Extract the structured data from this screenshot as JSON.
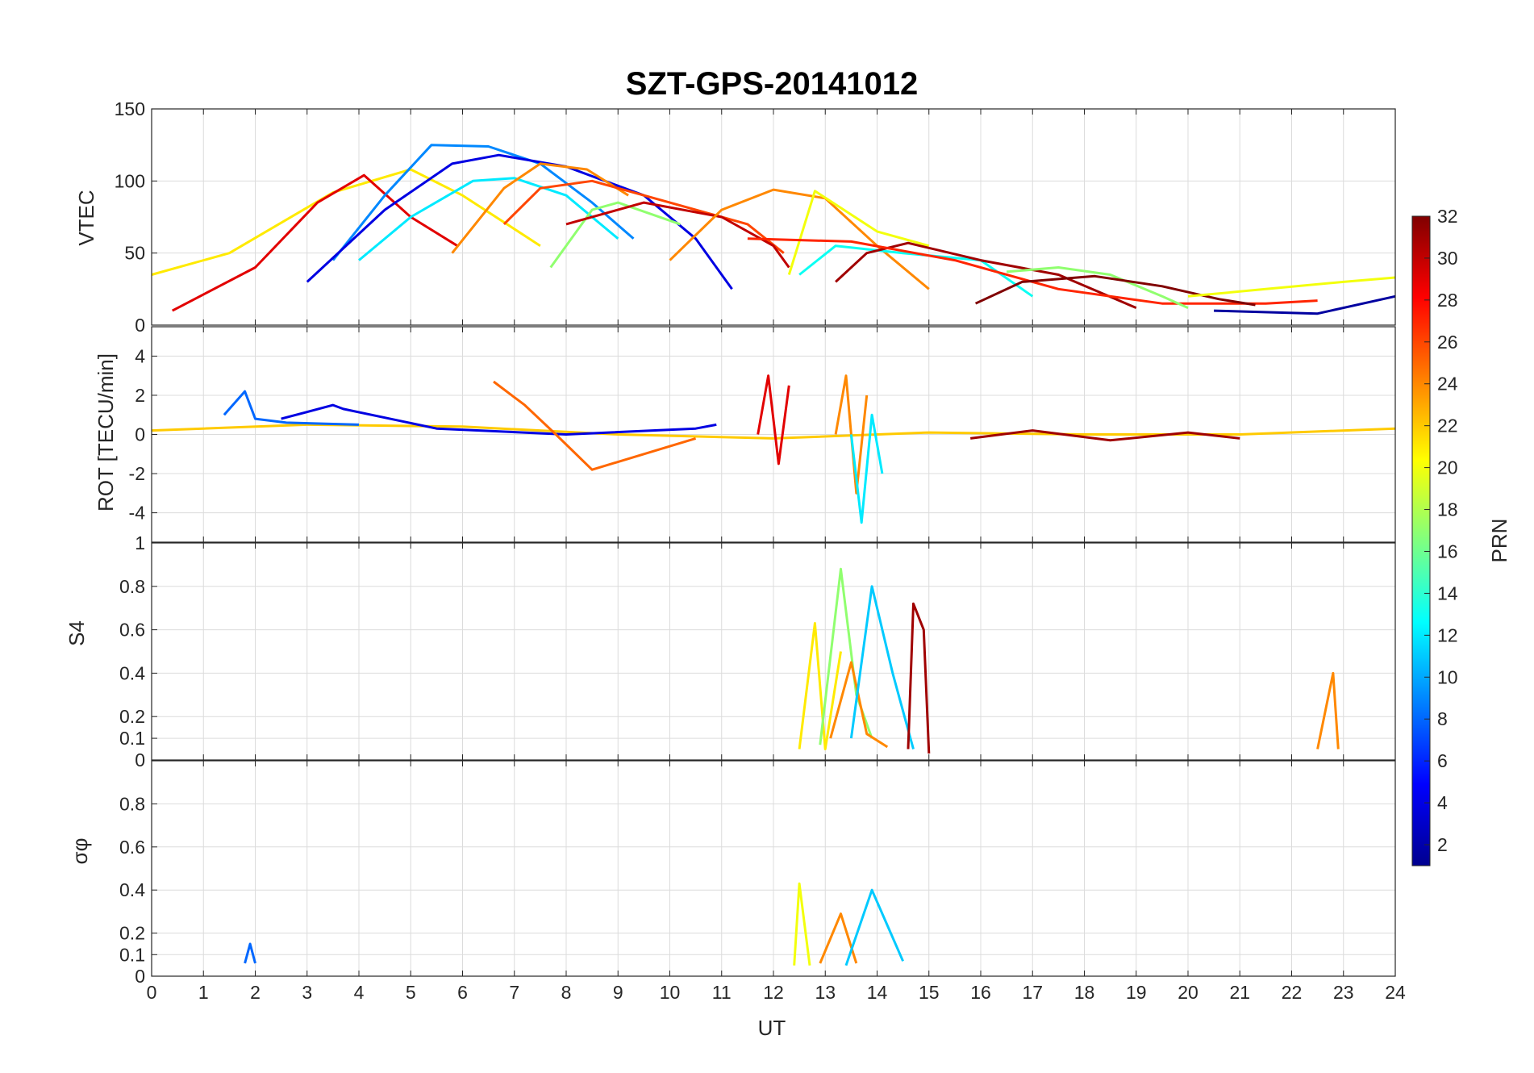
{
  "chart_data": {
    "type": "line",
    "title": "SZT-GPS-20141012",
    "xlabel": "UT",
    "xlim": [
      0,
      24
    ],
    "x_ticks": [
      "0",
      "1",
      "2",
      "3",
      "4",
      "5",
      "6",
      "7",
      "8",
      "9",
      "10",
      "11",
      "12",
      "13",
      "14",
      "15",
      "16",
      "17",
      "18",
      "19",
      "20",
      "21",
      "22",
      "23",
      "24"
    ],
    "grid": true,
    "colorbar": {
      "label": "PRN",
      "range": [
        1,
        32
      ],
      "ticks": [
        "2",
        "4",
        "6",
        "8",
        "10",
        "12",
        "14",
        "16",
        "18",
        "20",
        "22",
        "24",
        "26",
        "28",
        "30",
        "32"
      ],
      "colormap": "jet"
    },
    "panels": [
      {
        "ylabel": "VTEC",
        "ylim": [
          0,
          150
        ],
        "y_ticks": [
          "0",
          "50",
          "100",
          "150"
        ]
      },
      {
        "ylabel": "ROT [TECU/min]",
        "ylim": [
          -5.5,
          5.5
        ],
        "y_ticks": [
          "-4",
          "-2",
          "0",
          "2",
          "4"
        ]
      },
      {
        "ylabel": "S4",
        "ylim": [
          0,
          1
        ],
        "y_ticks": [
          "0",
          "0.1",
          "0.2",
          "0.4",
          "0.6",
          "0.8",
          "1"
        ]
      },
      {
        "ylabel": "σφ",
        "ylim": [
          0,
          1
        ],
        "y_ticks": [
          "0",
          "0.1",
          "0.2",
          "0.4",
          "0.6",
          "0.8"
        ]
      }
    ],
    "series": [
      {
        "prn": 21,
        "panel": 0,
        "x": [
          0,
          1.5,
          3.5,
          5.0,
          6.0,
          7.5
        ],
        "y": [
          35,
          50,
          92,
          108,
          90,
          55
        ]
      },
      {
        "prn": 29,
        "panel": 0,
        "x": [
          0.4,
          2.0,
          3.2,
          4.1,
          5.0,
          5.9
        ],
        "y": [
          10,
          40,
          85,
          104,
          75,
          55
        ]
      },
      {
        "prn": 9,
        "panel": 0,
        "x": [
          3.5,
          4.5,
          5.4,
          6.5,
          7.5,
          8.5,
          9.3
        ],
        "y": [
          45,
          90,
          125,
          124,
          112,
          85,
          60
        ]
      },
      {
        "prn": 4,
        "panel": 0,
        "x": [
          3.0,
          4.5,
          5.8,
          6.7,
          8.0,
          9.5,
          10.5,
          11.2
        ],
        "y": [
          30,
          80,
          112,
          118,
          110,
          90,
          60,
          25
        ]
      },
      {
        "prn": 12,
        "panel": 0,
        "x": [
          4.0,
          5.0,
          6.2,
          7.0,
          8.0,
          9.0
        ],
        "y": [
          45,
          75,
          100,
          102,
          90,
          60
        ]
      },
      {
        "prn": 24,
        "panel": 0,
        "x": [
          5.8,
          6.8,
          7.5,
          8.4,
          9.2
        ],
        "y": [
          50,
          95,
          112,
          108,
          90
        ]
      },
      {
        "prn": 26,
        "panel": 0,
        "x": [
          6.8,
          7.5,
          8.5,
          10.0,
          11.5,
          12.2
        ],
        "y": [
          70,
          95,
          100,
          85,
          70,
          50
        ]
      },
      {
        "prn": 17,
        "panel": 0,
        "x": [
          7.7,
          8.5,
          9.0,
          10.2
        ],
        "y": [
          40,
          80,
          85,
          70
        ]
      },
      {
        "prn": 30,
        "panel": 0,
        "x": [
          8.0,
          9.5,
          11.0,
          12.0,
          12.3
        ],
        "y": [
          70,
          85,
          75,
          55,
          40
        ]
      },
      {
        "prn": 24,
        "panel": 0,
        "x": [
          10.0,
          11.0,
          12.0,
          13.0,
          14.0,
          15.0
        ],
        "y": [
          45,
          80,
          94,
          88,
          55,
          25
        ]
      },
      {
        "prn": 20,
        "panel": 0,
        "x": [
          12.3,
          12.8,
          14.0,
          15.0
        ],
        "y": [
          35,
          93,
          65,
          55
        ]
      },
      {
        "prn": 13,
        "panel": 0,
        "x": [
          12.5,
          13.2,
          14.5,
          16.0,
          17.0
        ],
        "y": [
          35,
          55,
          50,
          45,
          20
        ]
      },
      {
        "prn": 31,
        "panel": 0,
        "x": [
          13.2,
          13.8,
          14.6,
          16.0,
          17.5,
          19.0
        ],
        "y": [
          30,
          50,
          57,
          45,
          35,
          12
        ]
      },
      {
        "prn": 27,
        "panel": 0,
        "x": [
          11.5,
          13.5,
          15.5,
          17.5,
          19.5,
          21.5,
          22.5
        ],
        "y": [
          60,
          58,
          45,
          25,
          15,
          15,
          17
        ]
      },
      {
        "prn": 17,
        "panel": 0,
        "x": [
          16.5,
          17.5,
          18.5,
          19.5,
          20.0
        ],
        "y": [
          37,
          40,
          35,
          20,
          12
        ]
      },
      {
        "prn": 32,
        "panel": 0,
        "x": [
          15.9,
          16.8,
          18.2,
          19.5,
          20.6,
          21.3
        ],
        "y": [
          15,
          30,
          34,
          27,
          18,
          14
        ]
      },
      {
        "prn": 20,
        "panel": 0,
        "x": [
          20.0,
          21.5,
          23.0,
          24.0
        ],
        "y": [
          20,
          25,
          30,
          33
        ]
      },
      {
        "prn": 2,
        "panel": 0,
        "x": [
          20.5,
          22.5,
          24.0
        ],
        "y": [
          10,
          8,
          20
        ]
      },
      {
        "prn": 22,
        "panel": 1,
        "x": [
          0,
          3,
          6,
          9,
          12,
          15,
          18,
          21,
          24
        ],
        "y": [
          0.2,
          0.5,
          0.4,
          0,
          -0.2,
          0.1,
          0,
          0,
          0.3
        ]
      },
      {
        "prn": 8,
        "panel": 1,
        "x": [
          1.4,
          1.8,
          2.0,
          2.6,
          4.0
        ],
        "y": [
          1.0,
          2.2,
          0.8,
          0.6,
          0.5
        ]
      },
      {
        "prn": 4,
        "panel": 1,
        "x": [
          2.5,
          3.5,
          3.7,
          5.5,
          8.0,
          10.5,
          10.9
        ],
        "y": [
          0.8,
          1.5,
          1.3,
          0.3,
          0,
          0.3,
          0.5
        ]
      },
      {
        "prn": 25,
        "panel": 1,
        "x": [
          6.6,
          7.2,
          7.8,
          8.5,
          9.5,
          10.5
        ],
        "y": [
          2.7,
          1.5,
          0,
          -1.8,
          -1.0,
          -0.2
        ]
      },
      {
        "prn": 29,
        "panel": 1,
        "x": [
          11.7,
          11.9,
          12.1,
          12.3
        ],
        "y": [
          0,
          3.0,
          -1.5,
          2.5
        ]
      },
      {
        "prn": 24,
        "panel": 1,
        "x": [
          13.2,
          13.4,
          13.6,
          13.8
        ],
        "y": [
          0,
          3.0,
          -3.0,
          2.0
        ]
      },
      {
        "prn": 12,
        "panel": 1,
        "x": [
          13.5,
          13.7,
          13.9,
          14.1
        ],
        "y": [
          0,
          -4.5,
          1.0,
          -2.0
        ]
      },
      {
        "prn": 31,
        "panel": 1,
        "x": [
          15.8,
          17.0,
          18.5,
          20.0,
          21.0
        ],
        "y": [
          -0.2,
          0.2,
          -0.3,
          0.1,
          -0.2
        ]
      },
      {
        "prn": 21,
        "panel": 2,
        "x": [
          12.5,
          12.8,
          13.0,
          13.3
        ],
        "y": [
          0.05,
          0.63,
          0.05,
          0.5
        ]
      },
      {
        "prn": 17,
        "panel": 2,
        "x": [
          12.9,
          13.3,
          13.6,
          13.9
        ],
        "y": [
          0.07,
          0.88,
          0.3,
          0.1
        ]
      },
      {
        "prn": 24,
        "panel": 2,
        "x": [
          13.1,
          13.5,
          13.8,
          14.2
        ],
        "y": [
          0.1,
          0.45,
          0.12,
          0.06
        ]
      },
      {
        "prn": 11,
        "panel": 2,
        "x": [
          13.5,
          13.9,
          14.3,
          14.7
        ],
        "y": [
          0.1,
          0.8,
          0.4,
          0.05
        ]
      },
      {
        "prn": 31,
        "panel": 2,
        "x": [
          14.6,
          14.7,
          14.9,
          15.0
        ],
        "y": [
          0.05,
          0.72,
          0.6,
          0.03
        ]
      },
      {
        "prn": 24,
        "panel": 2,
        "x": [
          22.5,
          22.8,
          22.9
        ],
        "y": [
          0.05,
          0.4,
          0.05
        ]
      },
      {
        "prn": 20,
        "panel": 3,
        "x": [
          12.4,
          12.5,
          12.7
        ],
        "y": [
          0.05,
          0.43,
          0.05
        ]
      },
      {
        "prn": 24,
        "panel": 3,
        "x": [
          12.9,
          13.3,
          13.6
        ],
        "y": [
          0.06,
          0.29,
          0.06
        ]
      },
      {
        "prn": 11,
        "panel": 3,
        "x": [
          13.4,
          13.9,
          14.5
        ],
        "y": [
          0.05,
          0.4,
          0.07
        ]
      },
      {
        "prn": 8,
        "panel": 3,
        "x": [
          1.8,
          1.9,
          2.0
        ],
        "y": [
          0.06,
          0.15,
          0.06
        ]
      }
    ]
  }
}
